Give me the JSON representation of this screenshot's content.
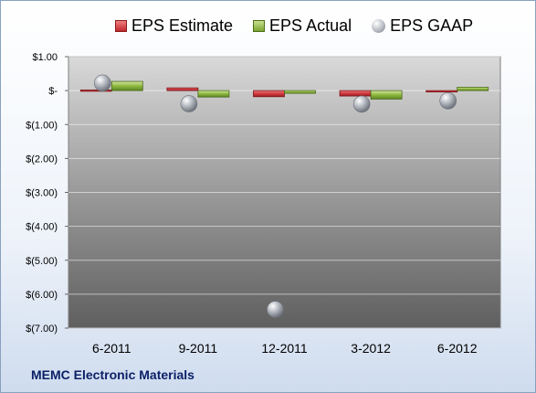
{
  "legend": {
    "estimate": "EPS Estimate",
    "actual": "EPS Actual",
    "gaap": "EPS GAAP"
  },
  "caption": "MEMC Electronic Materials",
  "colors": {
    "estimate": "#c0282d",
    "actual": "#7aa530",
    "gaap": "#a8adb6"
  },
  "chart_data": {
    "type": "bar",
    "categories": [
      "6-2011",
      "9-2011",
      "12-2011",
      "3-2012",
      "6-2012"
    ],
    "series": [
      {
        "name": "EPS Estimate",
        "values": [
          0.02,
          0.08,
          -0.18,
          -0.16,
          -0.02
        ]
      },
      {
        "name": "EPS Actual",
        "values": [
          0.27,
          -0.19,
          -0.08,
          -0.25,
          0.1
        ]
      },
      {
        "name": "EPS GAAP",
        "values": [
          0.22,
          -0.39,
          -6.45,
          -0.4,
          -0.3
        ],
        "style": "marker"
      }
    ],
    "ylim": [
      -7,
      1
    ],
    "yticks": [
      1,
      0,
      -1,
      -2,
      -3,
      -4,
      -5,
      -6,
      -7
    ],
    "ytick_labels": [
      "$1.00",
      "$-",
      "$(1.00)",
      "$(2.00)",
      "$(3.00)",
      "$(4.00)",
      "$(5.00)",
      "$(6.00)",
      "$(7.00)"
    ],
    "grid": true,
    "legend_position": "top"
  }
}
